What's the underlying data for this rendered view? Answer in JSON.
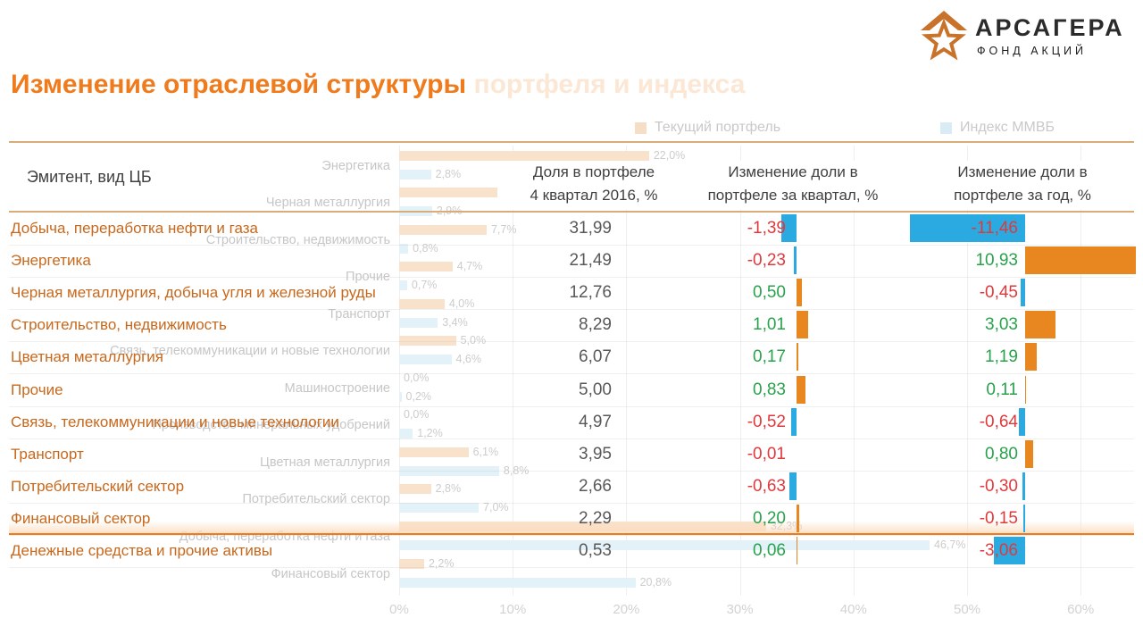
{
  "logo": {
    "brand": "АРСАГЕРА",
    "sub": "ФОНД АКЦИЙ"
  },
  "title": {
    "main": "Изменение отраслевой структуры",
    "faded": " портфеля и индекса"
  },
  "legend": {
    "portfolio": "Текущий портфель",
    "index": "Индекс ММВБ"
  },
  "colors": {
    "accent_orange": "#ef7b1d",
    "row_label_orange": "#c8681c",
    "bar_orange": "#e8861f",
    "bar_blue": "#2baae1",
    "positive_green": "#28a24c",
    "negative_red": "#e0393c",
    "faded_orange_bar": "#f9e2cc",
    "faded_blue_bar": "#e3f1f8",
    "border_tan": "#d9ad7a",
    "value_gray": "#595959"
  },
  "table": {
    "col_headers": [
      "Эмитент, вид ЦБ",
      "Доля в портфеле\n4 квартал 2016, %",
      "Изменение доли в\nпортфеле за квартал, %",
      "Изменение доли в\nпортфеле за год, %"
    ],
    "rows": [
      {
        "label": "Добыча, переработка нефти и газа",
        "share": "31,99",
        "quarter": "-1,39",
        "year": "-11,46"
      },
      {
        "label": "Энергетика",
        "share": "21,49",
        "quarter": "-0,23",
        "year": "10,93"
      },
      {
        "label": "Черная металлургия, добыча угля и железной руды",
        "share": "12,76",
        "quarter": "0,50",
        "year": "-0,45"
      },
      {
        "label": "Строительство, недвижимость",
        "share": "8,29",
        "quarter": "1,01",
        "year": "3,03"
      },
      {
        "label": "Цветная металлургия",
        "share": "6,07",
        "quarter": "0,17",
        "year": "1,19"
      },
      {
        "label": "Прочие",
        "share": "5,00",
        "quarter": "0,83",
        "year": "0,11"
      },
      {
        "label": "Связь, телекоммуникации и новые технологии",
        "share": "4,97",
        "quarter": "-0,52",
        "year": "-0,64"
      },
      {
        "label": "Транспорт",
        "share": "3,95",
        "quarter": "-0,01",
        "year": "0,80"
      },
      {
        "label": "Потребительский сектор",
        "share": "2,66",
        "quarter": "-0,63",
        "year": "-0,30"
      },
      {
        "label": "Финансовый сектор",
        "share": "2,29",
        "quarter": "0,20",
        "year": "-0,15"
      },
      {
        "label": "Денежные средства и прочие активы",
        "share": "0,53",
        "quarter": "0,06",
        "year": "-3,06"
      }
    ]
  },
  "chart_data": {
    "type": "bar",
    "orientation": "horizontal",
    "title": "Изменение отраслевой структуры портфеля и индекса",
    "note": "faded background bar chart behind the table",
    "legend_position": "top",
    "xlim": [
      0,
      60
    ],
    "xticks": [
      "0%",
      "10%",
      "20%",
      "30%",
      "40%",
      "50%",
      "60%"
    ],
    "categories": [
      "Энергетика",
      "Черная металлургия",
      "Строительство, недвижимость",
      "Прочие",
      "Транспорт",
      "Связь, телекоммуникации и новые технологии",
      "Машиностроение",
      "Производство минеральных удобрений",
      "Цветная металлургия",
      "Потребительский сектор",
      "Добыча, переработка нефти и газа",
      "Финансовый сектор"
    ],
    "series": [
      {
        "name": "Текущий портфель",
        "values": [
          22.0,
          12.8,
          7.7,
          4.7,
          4.0,
          5.0,
          0.0,
          0.0,
          6.1,
          2.8,
          32.3,
          2.2
        ]
      },
      {
        "name": "Индекс ММВБ",
        "values": [
          2.8,
          2.9,
          0.8,
          0.7,
          3.4,
          4.6,
          0.2,
          1.2,
          8.8,
          7.0,
          46.7,
          20.8
        ]
      }
    ]
  }
}
